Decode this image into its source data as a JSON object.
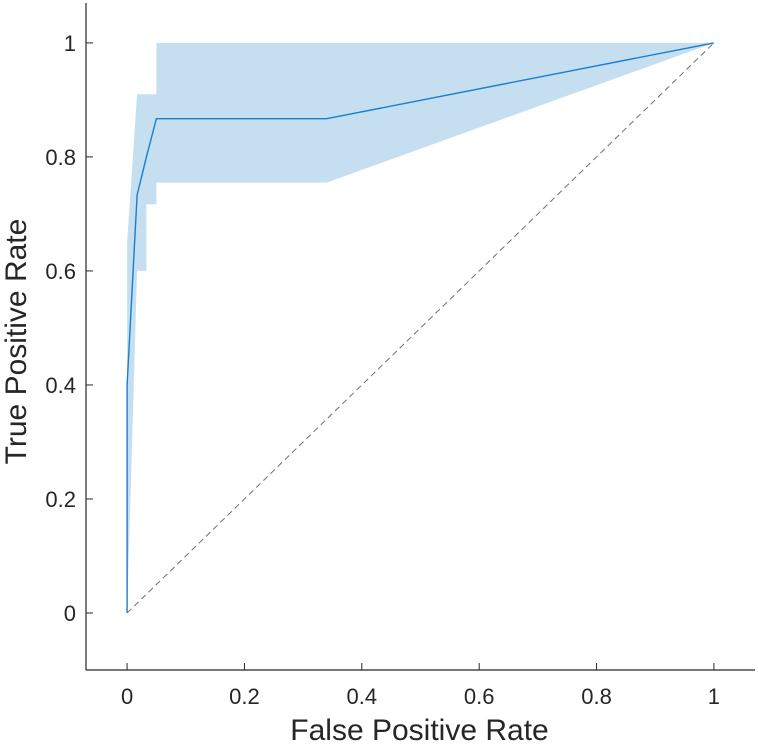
{
  "chart_data": {
    "type": "line",
    "xlabel": "False Positive Rate",
    "ylabel": "True Positive Rate",
    "xlim": [
      -0.07,
      1.07
    ],
    "ylim": [
      -0.1,
      1.07
    ],
    "xticks": [
      0,
      0.2,
      0.4,
      0.6,
      0.8,
      1
    ],
    "yticks": [
      0,
      0.2,
      0.4,
      0.6,
      0.8,
      1
    ],
    "xtick_labels": [
      "0",
      "0.2",
      "0.4",
      "0.6",
      "0.8",
      "1"
    ],
    "ytick_labels": [
      "0",
      "0.2",
      "0.4",
      "0.6",
      "0.8",
      "1"
    ],
    "grid": false,
    "series": [
      {
        "style": "solid",
        "color": "#1a7ecf",
        "x": [
          0,
          0,
          0.017,
          0.017,
          0.033,
          0.033,
          0.05,
          0.05,
          0.34,
          1
        ],
        "y": [
          0,
          0.4,
          0.733,
          0.733,
          0.8,
          0.8,
          0.867,
          0.867,
          0.867,
          1
        ]
      },
      {
        "style": "dashed",
        "color": "#707070",
        "x": [
          0,
          1
        ],
        "y": [
          0,
          1
        ]
      }
    ],
    "confidence_band": {
      "color": "#c5dff1",
      "x": [
        0,
        0.017,
        0.017,
        0.033,
        0.033,
        0.05,
        0.05,
        0.34,
        1
      ],
      "lower": [
        0,
        0.6,
        0.6,
        0.6,
        0.717,
        0.717,
        0.755,
        0.755,
        1
      ],
      "upper": [
        0.65,
        0.91,
        0.91,
        0.91,
        0.91,
        0.91,
        1.0,
        1.0,
        1
      ]
    }
  }
}
